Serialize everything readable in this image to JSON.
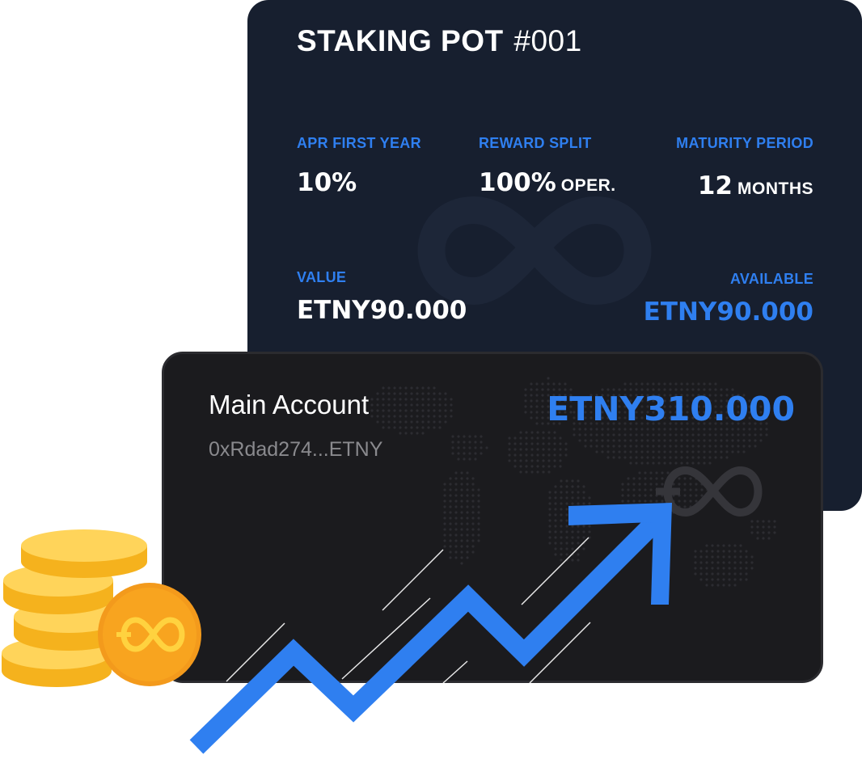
{
  "staking_pot": {
    "title": "STAKING POT",
    "number": "#001",
    "apr_label": "APR FIRST YEAR",
    "apr_value": "10%",
    "reward_split_label": "REWARD SPLIT",
    "reward_split_value": "100%",
    "reward_split_unit": "OPER.",
    "maturity_label": "MATURITY PERIOD",
    "maturity_value": "12",
    "maturity_unit": "MONTHS",
    "value_label": "VALUE",
    "value_amount": "ETNY90.000",
    "available_label": "AVAILABLE",
    "available_amount": "ETNY90.000"
  },
  "account": {
    "name": "Main Account",
    "address": "0xRdad274...ETNY",
    "balance": "ETNY310.000"
  },
  "icons": {
    "brand_logo": "ethernity-infinity-logo-icon",
    "coins": "coin-stack-icon",
    "trend": "trend-up-arrow-icon"
  },
  "colors": {
    "accent_blue": "#2f7ff0",
    "pot_card_bg": "#171f2f",
    "account_card_bg": "#1b1b1e",
    "coin_gold": "#fbbf24",
    "coin_orange": "#f97316"
  }
}
